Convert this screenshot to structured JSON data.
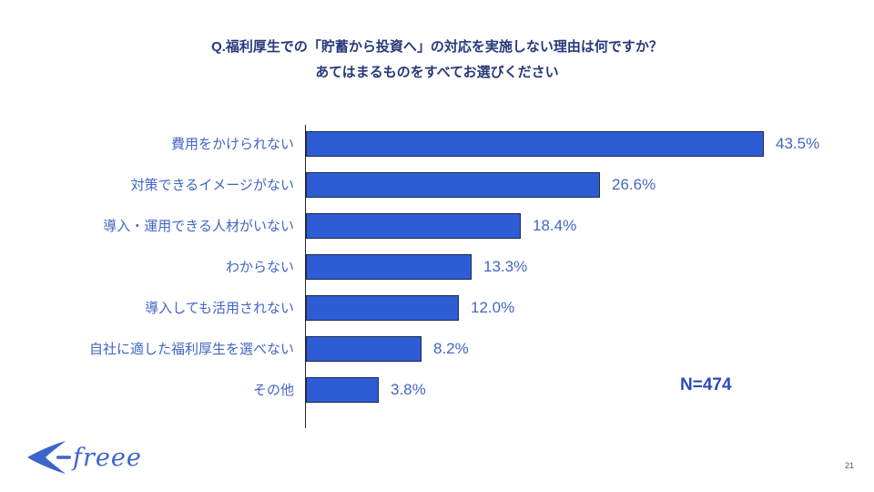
{
  "slide": {
    "title_line1": "Q.福利厚生での「貯蓄から投資へ」の対応を実施しない理由は何ですか？",
    "title_line2": "あてはまるものをすべてお選びください",
    "sample_size_label": "N=474",
    "page_number": "21",
    "logo_text": "freee"
  },
  "chart_data": {
    "type": "bar",
    "orientation": "horizontal",
    "title": "Q.福利厚生での「貯蓄から投資へ」の対応を実施しない理由は何ですか？ あてはまるものをすべてお選びください",
    "categories": [
      "費用をかけられない",
      "対策できるイメージがない",
      "導入・運用できる人材がいない",
      "わからない",
      "導入しても活用されない",
      "自社に適した福利厚生を選べない",
      "その他"
    ],
    "values": [
      43.5,
      26.6,
      18.4,
      13.3,
      12.0,
      8.2,
      3.8
    ],
    "value_display": [
      "43.5%",
      "26.6%",
      "18.4%",
      "13.3%",
      "12.0%",
      "8.2%",
      "3.8%"
    ],
    "sample_size": 474,
    "xlim": [
      0,
      45
    ],
    "grid": false,
    "legend": "none",
    "bar_color": "#2e5cd5",
    "bar_border_color": "#1c2b4a",
    "label_color": "#4166c4",
    "title_color": "#27397a"
  }
}
